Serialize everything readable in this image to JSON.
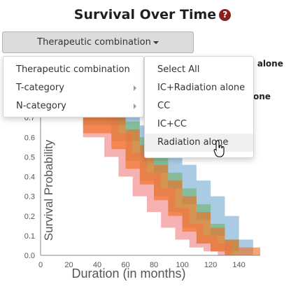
{
  "page": {
    "title": "Survival Over Time",
    "help_icon_glyph": "?"
  },
  "dropdown": {
    "button_label": "Therapeutic combination"
  },
  "menu": {
    "level1": [
      {
        "label": "Therapeutic combination",
        "has_submenu": false
      },
      {
        "label": "T-category",
        "has_submenu": true
      },
      {
        "label": "N-category",
        "has_submenu": true
      }
    ],
    "level2": [
      {
        "label": "Select All"
      },
      {
        "label": "IC+Radiation alone"
      },
      {
        "label": "CC"
      },
      {
        "label": "IC+CC"
      },
      {
        "label": "Radiation alone",
        "hovered": true
      }
    ]
  },
  "legend": {
    "visible_fragments": [
      "n alone",
      "one"
    ]
  },
  "chart_data": {
    "type": "area",
    "xlabel": "Duration (in months)",
    "ylabel": "Survival Probability",
    "xlim": [
      0,
      155
    ],
    "ylim": [
      0,
      0.8
    ],
    "xticks": [
      "0",
      "20",
      "40",
      "60",
      "80",
      "100",
      "120",
      "140"
    ],
    "yticks": [
      "0.0",
      "0.1",
      "0.2",
      "0.3",
      "0.4",
      "0.5",
      "0.6",
      "0.7"
    ],
    "series": [
      {
        "name": "IC+Radiation alone",
        "color": "#6fa8d0",
        "upper": [
          [
            30,
            0.8
          ],
          [
            50,
            0.78
          ],
          [
            60,
            0.72
          ],
          [
            70,
            0.66
          ],
          [
            80,
            0.58
          ],
          [
            90,
            0.52
          ],
          [
            100,
            0.46
          ],
          [
            110,
            0.38
          ],
          [
            120,
            0.3
          ],
          [
            130,
            0.2
          ],
          [
            140,
            0.08
          ],
          [
            150,
            0.02
          ]
        ],
        "lower": [
          [
            150,
            0.0
          ],
          [
            140,
            0.02
          ],
          [
            130,
            0.1
          ],
          [
            120,
            0.18
          ],
          [
            110,
            0.26
          ],
          [
            100,
            0.34
          ],
          [
            90,
            0.42
          ],
          [
            80,
            0.5
          ],
          [
            70,
            0.58
          ],
          [
            60,
            0.66
          ],
          [
            50,
            0.72
          ],
          [
            30,
            0.76
          ]
        ]
      },
      {
        "name": "CC",
        "color": "#6db36d",
        "upper": [
          [
            30,
            0.79
          ],
          [
            50,
            0.74
          ],
          [
            60,
            0.68
          ],
          [
            70,
            0.6
          ],
          [
            80,
            0.5
          ],
          [
            90,
            0.42
          ],
          [
            100,
            0.34
          ],
          [
            110,
            0.26
          ],
          [
            120,
            0.16
          ],
          [
            130,
            0.08
          ],
          [
            140,
            0.03
          ]
        ],
        "lower": [
          [
            140,
            0.0
          ],
          [
            130,
            0.02
          ],
          [
            120,
            0.06
          ],
          [
            110,
            0.14
          ],
          [
            100,
            0.22
          ],
          [
            90,
            0.3
          ],
          [
            80,
            0.38
          ],
          [
            70,
            0.48
          ],
          [
            60,
            0.58
          ],
          [
            50,
            0.66
          ],
          [
            30,
            0.74
          ]
        ]
      },
      {
        "name": "IC+CC",
        "color": "#f07e7e",
        "upper": [
          [
            30,
            0.77
          ],
          [
            45,
            0.7
          ],
          [
            55,
            0.62
          ],
          [
            65,
            0.52
          ],
          [
            75,
            0.42
          ],
          [
            85,
            0.34
          ],
          [
            95,
            0.24
          ],
          [
            105,
            0.16
          ],
          [
            115,
            0.1
          ],
          [
            125,
            0.06
          ],
          [
            135,
            0.03
          ]
        ],
        "lower": [
          [
            135,
            0.0
          ],
          [
            125,
            0.02
          ],
          [
            115,
            0.04
          ],
          [
            105,
            0.08
          ],
          [
            95,
            0.14
          ],
          [
            85,
            0.22
          ],
          [
            75,
            0.3
          ],
          [
            65,
            0.4
          ],
          [
            55,
            0.5
          ],
          [
            45,
            0.6
          ],
          [
            30,
            0.7
          ]
        ]
      },
      {
        "name": "Radiation alone",
        "color": "#f56a1a",
        "upper": [
          [
            30,
            0.78
          ],
          [
            50,
            0.72
          ],
          [
            60,
            0.64
          ],
          [
            70,
            0.56
          ],
          [
            80,
            0.46
          ],
          [
            90,
            0.38
          ],
          [
            100,
            0.3
          ],
          [
            110,
            0.22
          ],
          [
            120,
            0.14
          ],
          [
            130,
            0.08
          ],
          [
            140,
            0.04
          ],
          [
            155,
            0.02
          ]
        ],
        "lower": [
          [
            155,
            0.0
          ],
          [
            140,
            0.0
          ],
          [
            130,
            0.02
          ],
          [
            120,
            0.06
          ],
          [
            110,
            0.12
          ],
          [
            100,
            0.2
          ],
          [
            90,
            0.28
          ],
          [
            80,
            0.36
          ],
          [
            70,
            0.44
          ],
          [
            60,
            0.54
          ],
          [
            50,
            0.62
          ],
          [
            30,
            0.72
          ]
        ]
      }
    ]
  }
}
